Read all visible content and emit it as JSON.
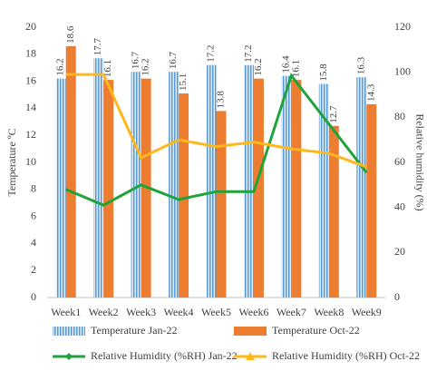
{
  "chart_data": {
    "type": "bar_line",
    "y_label": "Temperature ºC",
    "y2_label": "Relative humidity (%)",
    "categories": [
      "Week1",
      "Week2",
      "Week3",
      "Week4",
      "Week5",
      "Week6",
      "Week7",
      "Week8",
      "Week9"
    ],
    "ylim": [
      0,
      20
    ],
    "yticks": [
      0,
      2,
      4,
      6,
      8,
      10,
      12,
      14,
      16,
      18,
      20
    ],
    "y2lim": [
      0,
      120
    ],
    "y2ticks": [
      0,
      20,
      40,
      60,
      80,
      100,
      120
    ],
    "series": [
      {
        "name": "Temperature Jan-22",
        "kind": "bar",
        "color": "#5B9BD5",
        "values": [
          16.2,
          17.7,
          16.7,
          16.7,
          17.2,
          17.2,
          16.4,
          15.8,
          16.3
        ]
      },
      {
        "name": "Temperature Oct-22",
        "kind": "bar",
        "color": "#ED7D31",
        "values": [
          18.6,
          16.1,
          16.2,
          15.1,
          13.8,
          16.2,
          16.1,
          12.7,
          14.3
        ]
      },
      {
        "name": "Relative Humidity (%RH) Jan-22",
        "kind": "line",
        "axis": "y2",
        "color": "#1FA33A",
        "values": [
          48,
          41,
          50,
          43.5,
          47,
          47,
          98.5,
          77,
          55.5
        ]
      },
      {
        "name": "Relative Humidity (%RH) Oct-22",
        "kind": "line",
        "axis": "y2",
        "color": "#FFB81C",
        "values": [
          99,
          99,
          62,
          70,
          67,
          69,
          66,
          64,
          58
        ]
      }
    ]
  }
}
